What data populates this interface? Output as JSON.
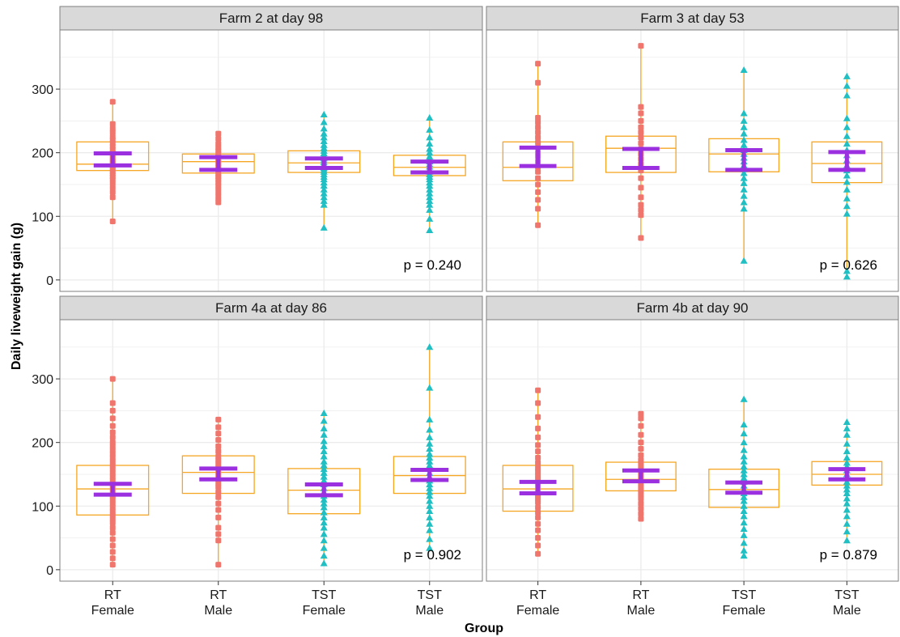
{
  "chart_data": {
    "type": "boxplot",
    "xlabel": "Group",
    "ylabel": "Daily liveweight gain (g)",
    "ylim": [
      -18,
      393
    ],
    "yticks": [
      0,
      100,
      200,
      300
    ],
    "categories": [
      "RT\nFemale",
      "RT\nMale",
      "TST\nFemale",
      "TST\nMale"
    ],
    "grid": true,
    "colors": {
      "RT": "#f0766d",
      "TST": "#1fbfc3",
      "box": "#f5a623",
      "mean_ci": "#9b30e0",
      "strip_bg": "#d9d9d9",
      "grid": "#ebebeb"
    },
    "panels": [
      {
        "title": "Farm 2 at day 98",
        "p_value": "p = 0.240",
        "groups": [
          {
            "box": [
              172,
              182,
              217
            ],
            "whisker": [
              92,
              280
            ],
            "ci": [
              180,
              199
            ],
            "points": [
              92,
              130,
              138,
              145,
              152,
              158,
              162,
              166,
              170,
              174,
              178,
              181,
              185,
              188,
              192,
              196,
              200,
              205,
              210,
              215,
              220,
              225,
              232,
              238,
              245,
              280
            ]
          },
          {
            "box": [
              168,
              186,
              198
            ],
            "whisker": [
              122,
              230
            ],
            "ci": [
              173,
              193
            ],
            "points": [
              122,
              128,
              135,
              142,
              148,
              153,
              158,
              162,
              166,
              170,
              174,
              178,
              182,
              186,
              190,
              194,
              198,
              203,
              208,
              214,
              222,
              230
            ]
          },
          {
            "box": [
              169,
              184,
              203
            ],
            "whisker": [
              82,
              260
            ],
            "ci": [
              176,
              191
            ],
            "points": [
              82,
              118,
              124,
              130,
              136,
              142,
              148,
              153,
              158,
              162,
              166,
              170,
              173,
              176,
              179,
              182,
              185,
              188,
              191,
              195,
              199,
              203,
              207,
              212,
              218,
              224,
              230,
              238,
              248,
              260
            ]
          },
          {
            "box": [
              164,
              177,
              196
            ],
            "whisker": [
              78,
              255
            ],
            "ci": [
              169,
              186
            ],
            "points": [
              78,
              96,
              110,
              118,
              124,
              130,
              136,
              142,
              148,
              153,
              158,
              162,
              166,
              170,
              174,
              178,
              182,
              186,
              190,
              194,
              200,
              206,
              214,
              224,
              236,
              255
            ]
          }
        ]
      },
      {
        "title": "Farm 3 at day 53",
        "p_value": "p = 0.626",
        "groups": [
          {
            "box": [
              156,
              177,
              217
            ],
            "whisker": [
              86,
              340
            ],
            "ci": [
              179,
              208
            ],
            "points": [
              86,
              112,
              126,
              138,
              150,
              160,
              170,
              178,
              186,
              194,
              200,
              208,
              216,
              224,
              232,
              240,
              248,
              255,
              310,
              340
            ]
          },
          {
            "box": [
              169,
              207,
              226
            ],
            "whisker": [
              66,
              368
            ],
            "ci": [
              176,
              206
            ],
            "points": [
              66,
              102,
              110,
              118,
              130,
              145,
              160,
              172,
              182,
              190,
              198,
              206,
              215,
              224,
              232,
              240,
              250,
              262,
              272,
              368
            ]
          },
          {
            "box": [
              170,
              198,
              222
            ],
            "whisker": [
              30,
              330
            ],
            "ci": [
              173,
              204
            ],
            "points": [
              30,
              112,
              122,
              132,
              142,
              152,
              160,
              168,
              174,
              180,
              186,
              192,
              198,
              204,
              212,
              220,
              230,
              240,
              250,
              262,
              330
            ]
          },
          {
            "box": [
              153,
              183,
              217
            ],
            "whisker": [
              5,
              320
            ],
            "ci": [
              173,
              201
            ],
            "points": [
              5,
              14,
              104,
              116,
              128,
              142,
              154,
              164,
              172,
              180,
              188,
              196,
              204,
              214,
              226,
              240,
              254,
              290,
              305,
              320
            ]
          }
        ]
      },
      {
        "title": "Farm 4a at day 86",
        "p_value": "p = 0.902",
        "groups": [
          {
            "box": [
              86,
              127,
              164
            ],
            "whisker": [
              8,
              300
            ],
            "ci": [
              118,
              135
            ],
            "points": [
              8,
              18,
              28,
              38,
              48,
              58,
              66,
              74,
              80,
              86,
              92,
              98,
              104,
              110,
              116,
              122,
              128,
              134,
              140,
              146,
              152,
              158,
              164,
              170,
              176,
              182,
              188,
              194,
              200,
              208,
              216,
              226,
              238,
              250,
              262,
              300
            ]
          },
          {
            "box": [
              120,
              153,
              179
            ],
            "whisker": [
              8,
              236
            ],
            "ci": [
              142,
              159
            ],
            "points": [
              8,
              46,
              56,
              66,
              82,
              94,
              104,
              114,
              122,
              130,
              136,
              142,
              148,
              154,
              160,
              166,
              172,
              178,
              186,
              194,
              204,
              214,
              224,
              236
            ]
          },
          {
            "box": [
              88,
              125,
              159
            ],
            "whisker": [
              10,
              246
            ],
            "ci": [
              117,
              134
            ],
            "points": [
              10,
              22,
              34,
              46,
              56,
              66,
              74,
              82,
              90,
              98,
              104,
              110,
              116,
              122,
              128,
              134,
              140,
              146,
              152,
              158,
              164,
              170,
              178,
              186,
              194,
              202,
              212,
              222,
              234,
              246
            ]
          },
          {
            "box": [
              120,
              148,
              178
            ],
            "whisker": [
              34,
              350
            ],
            "ci": [
              141,
              157
            ],
            "points": [
              34,
              48,
              62,
              72,
              82,
              92,
              100,
              108,
              116,
              122,
              128,
              134,
              140,
              146,
              152,
              158,
              164,
              170,
              176,
              182,
              190,
              198,
              208,
              220,
              236,
              286,
              350
            ]
          }
        ]
      },
      {
        "title": "Farm 4b at day 90",
        "p_value": "p = 0.879",
        "groups": [
          {
            "box": [
              92,
              127,
              164
            ],
            "whisker": [
              25,
              282
            ],
            "ci": [
              120,
              138
            ],
            "points": [
              25,
              38,
              50,
              62,
              72,
              82,
              90,
              98,
              106,
              112,
              118,
              124,
              130,
              136,
              142,
              148,
              154,
              160,
              168,
              176,
              186,
              196,
              208,
              222,
              240,
              262,
              282
            ]
          },
          {
            "box": [
              124,
              142,
              169
            ],
            "whisker": [
              80,
              245
            ],
            "ci": [
              139,
              156
            ],
            "points": [
              80,
              88,
              96,
              104,
              112,
              118,
              124,
              130,
              136,
              142,
              148,
              154,
              160,
              166,
              172,
              180,
              190,
              200,
              212,
              226,
              238,
              245
            ]
          },
          {
            "box": [
              98,
              126,
              158
            ],
            "whisker": [
              22,
              268
            ],
            "ci": [
              121,
              137
            ],
            "points": [
              22,
              30,
              42,
              54,
              64,
              74,
              84,
              92,
              100,
              108,
              114,
              120,
              126,
              132,
              138,
              144,
              150,
              156,
              162,
              170,
              178,
              188,
              200,
              214,
              228,
              268
            ]
          },
          {
            "box": [
              133,
              150,
              170
            ],
            "whisker": [
              46,
              232
            ],
            "ci": [
              142,
              158
            ],
            "points": [
              46,
              60,
              72,
              84,
              94,
              104,
              112,
              120,
              126,
              132,
              138,
              144,
              150,
              156,
              162,
              168,
              176,
              186,
              198,
              212,
              222,
              232
            ]
          }
        ]
      }
    ]
  }
}
